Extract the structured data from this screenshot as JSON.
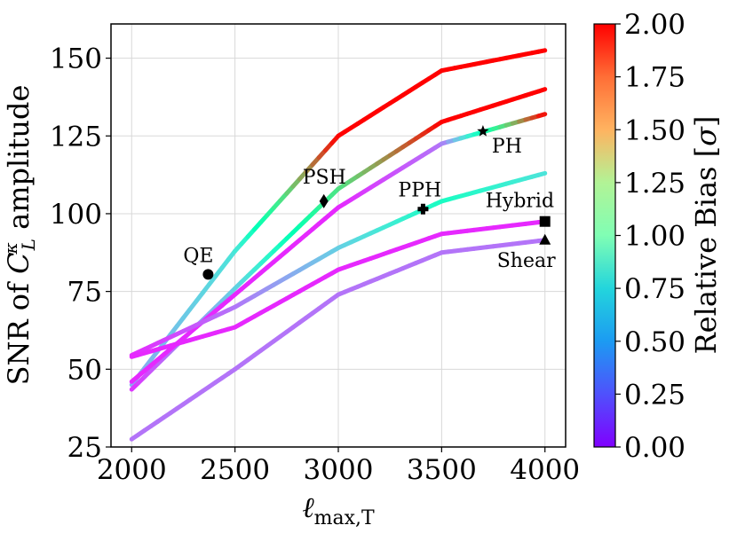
{
  "chart_data": {
    "type": "line",
    "title": "",
    "xlabel": "ℓmax,T",
    "xlabel_main": "ℓ",
    "xlabel_sub": "max,T",
    "ylabel": "SNR of C_L^κ amplitude",
    "ylabel_prefix": "SNR of ",
    "ylabel_symbol": "C",
    "ylabel_sub": "L",
    "ylabel_sup": "κ",
    "ylabel_suffix": " amplitude",
    "xlim": [
      1900,
      4100
    ],
    "ylim": [
      25,
      161
    ],
    "xticks": [
      2000,
      2500,
      3000,
      3500,
      4000
    ],
    "xtick_labels": [
      "2000",
      "2500",
      "3000",
      "3500",
      "4000"
    ],
    "yticks": [
      25,
      50,
      75,
      100,
      125,
      150
    ],
    "ytick_labels": [
      "25",
      "50",
      "75",
      "100",
      "125",
      "150"
    ],
    "grid": true,
    "colorbar": {
      "label": "Relative Bias [σ]",
      "label_text": "Relative Bias ",
      "label_bracket_open": "[",
      "label_symbol": "σ",
      "label_bracket_close": "]",
      "min": 0.0,
      "max": 2.0,
      "ticks": [
        0.0,
        0.25,
        0.5,
        0.75,
        1.0,
        1.25,
        1.5,
        1.75,
        2.0
      ],
      "tick_labels": [
        "0.00",
        "0.25",
        "0.50",
        "0.75",
        "1.00",
        "1.25",
        "1.50",
        "1.75",
        "2.00"
      ],
      "colormap": "rainbow"
    },
    "series": [
      {
        "name": "QE",
        "x": [
          2000,
          2500,
          3000,
          3500,
          4000
        ],
        "values": [
          45,
          88,
          125,
          146,
          152.5
        ],
        "bias": [
          0.45,
          0.7,
          2.0,
          2.0,
          2.0
        ],
        "marker": "circle",
        "marker_point": [
          2370,
          80.5
        ],
        "label": "QE"
      },
      {
        "name": "PSH",
        "x": [
          2000,
          2500,
          3000,
          3500,
          4000
        ],
        "values": [
          43.5,
          76,
          108,
          129.5,
          140
        ],
        "bias": [
          0.12,
          0.6,
          1.3,
          2.0,
          2.0
        ],
        "marker": "diamond",
        "marker_point": [
          2930,
          104
        ],
        "label": "PSH"
      },
      {
        "name": "PH",
        "x": [
          2000,
          2500,
          3000,
          3500,
          4000
        ],
        "values": [
          46,
          74,
          102,
          122.5,
          132
        ],
        "bias": [
          0.1,
          0.1,
          0.1,
          0.3,
          2.0
        ],
        "marker": "star",
        "marker_point": [
          3700,
          126.5
        ],
        "label": "PH"
      },
      {
        "name": "PPH",
        "x": [
          2000,
          2500,
          3000,
          3500,
          4000
        ],
        "values": [
          54.5,
          70,
          89,
          104,
          113
        ],
        "bias": [
          0.1,
          0.3,
          0.6,
          0.9,
          0.7
        ],
        "marker": "plus",
        "marker_point": [
          3410,
          101.5
        ],
        "label": "PPH"
      },
      {
        "name": "Hybrid",
        "x": [
          2000,
          2500,
          3000,
          3500,
          4000
        ],
        "values": [
          54,
          63.5,
          82,
          93.5,
          97.5
        ],
        "bias": [
          0.1,
          0.1,
          0.1,
          0.1,
          0.1
        ],
        "marker": "square",
        "marker_point": [
          4000,
          97.5
        ],
        "label": "Hybrid"
      },
      {
        "name": "Shear",
        "x": [
          2000,
          2500,
          3000,
          3500,
          4000
        ],
        "values": [
          27.5,
          50,
          74,
          87.5,
          91.5
        ],
        "bias": [
          0.3,
          0.3,
          0.3,
          0.3,
          0.3
        ],
        "marker": "triangle",
        "marker_point": [
          4000,
          91.5
        ],
        "label": "Shear"
      }
    ]
  }
}
